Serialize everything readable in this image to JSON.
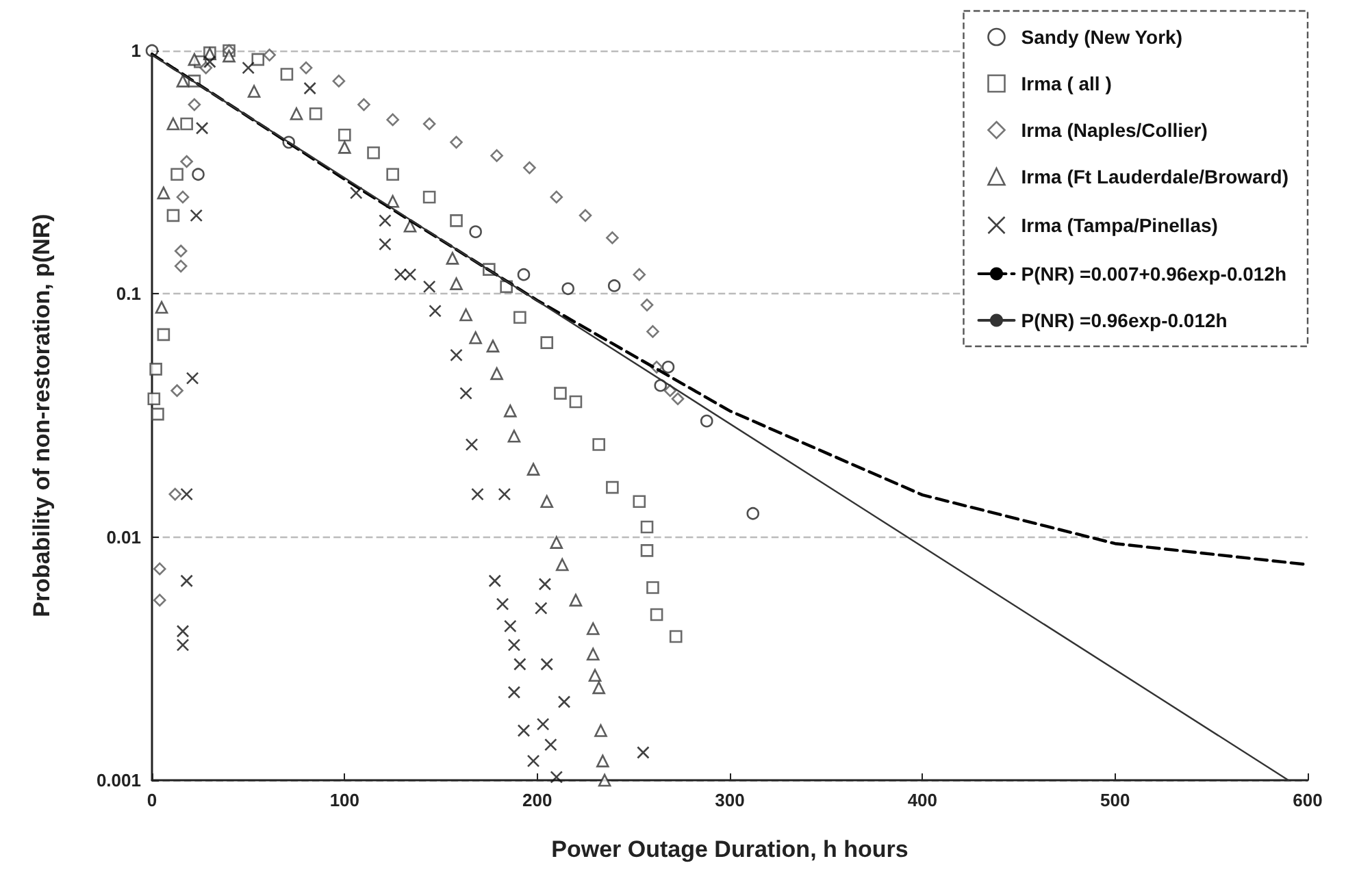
{
  "chart_data": {
    "type": "scatter",
    "xlabel": "Power Outage Duration, h hours",
    "ylabel": "Probability of non-restoration, p(NR)",
    "log": "y",
    "grid": "y",
    "legend": "top right",
    "xlim": [
      0,
      600
    ],
    "xticks": [
      0,
      100,
      200,
      300,
      400,
      500,
      600
    ],
    "ylim": [
      0.001,
      1
    ],
    "yticks": [
      0.001,
      0.01,
      0.1,
      1
    ],
    "series": [
      {
        "name": "Sandy (New York)",
        "color": "#222222",
        "marker": "circle",
        "x": [
          0,
          24,
          71,
          168,
          193,
          216,
          240,
          264,
          268,
          288,
          312
        ],
        "values": [
          1,
          0.31,
          0.42,
          0.18,
          0.12,
          0.105,
          0.108,
          0.042,
          0.05,
          0.03,
          0.0125
        ]
      },
      {
        "name": "Irma ( all )",
        "color": "#444444",
        "marker": "square",
        "x": [
          1,
          3,
          2,
          6,
          11,
          13,
          18,
          22,
          25,
          30,
          40,
          55,
          70,
          85,
          100,
          115,
          125,
          144,
          158,
          175,
          184,
          191,
          205,
          212,
          220,
          232,
          239,
          253,
          257,
          257,
          260,
          262,
          272
        ],
        "values": [
          0.037,
          0.032,
          0.049,
          0.068,
          0.21,
          0.31,
          0.5,
          0.75,
          0.9,
          0.98,
          1,
          0.92,
          0.8,
          0.55,
          0.45,
          0.38,
          0.31,
          0.25,
          0.2,
          0.126,
          0.107,
          0.08,
          0.063,
          0.039,
          0.036,
          0.024,
          0.016,
          0.014,
          0.011,
          0.0088,
          0.0062,
          0.0048,
          0.0039
        ]
      },
      {
        "name": "Irma (Naples/Collier)",
        "color": "#555555",
        "marker": "diamond",
        "x": [
          4,
          4,
          12,
          13,
          15,
          15,
          16,
          18,
          22,
          28,
          40,
          61,
          80,
          97,
          110,
          125,
          144,
          158,
          179,
          196,
          210,
          225,
          239,
          253,
          257,
          260,
          262,
          269,
          273
        ],
        "values": [
          0.0074,
          0.0055,
          0.015,
          0.04,
          0.13,
          0.15,
          0.25,
          0.35,
          0.6,
          0.85,
          1,
          0.96,
          0.85,
          0.75,
          0.6,
          0.52,
          0.5,
          0.42,
          0.37,
          0.33,
          0.25,
          0.21,
          0.17,
          0.12,
          0.09,
          0.07,
          0.05,
          0.04,
          0.037
        ]
      },
      {
        "name": "Irma (Ft Lauderdale/Broward)",
        "color": "#333333",
        "marker": "triangle",
        "x": [
          5,
          6,
          11,
          16,
          22,
          30,
          40,
          53,
          75,
          100,
          125,
          134,
          156,
          158,
          163,
          168,
          177,
          179,
          186,
          188,
          198,
          205,
          210,
          213,
          220,
          229,
          229,
          230,
          232,
          233,
          234,
          235
        ],
        "values": [
          0.088,
          0.26,
          0.5,
          0.75,
          0.92,
          0.97,
          0.95,
          0.68,
          0.55,
          0.4,
          0.24,
          0.19,
          0.14,
          0.11,
          0.082,
          0.066,
          0.061,
          0.047,
          0.033,
          0.026,
          0.019,
          0.014,
          0.0095,
          0.0077,
          0.0055,
          0.0042,
          0.0033,
          0.0027,
          0.0024,
          0.0016,
          0.0012,
          0.001
        ]
      },
      {
        "name": "Irma (Tampa/Pinellas)",
        "color": "#111111",
        "marker": "cross",
        "x": [
          16,
          16,
          18,
          18,
          21,
          23,
          26,
          30,
          50,
          82,
          106,
          121,
          121,
          129,
          134,
          144,
          147,
          158,
          163,
          166,
          169,
          183,
          178,
          182,
          186,
          188,
          191,
          188,
          204,
          202,
          205,
          214,
          193,
          203,
          207,
          198,
          210,
          255
        ],
        "values": [
          0.0041,
          0.0036,
          0.0066,
          0.015,
          0.045,
          0.21,
          0.48,
          0.9,
          0.85,
          0.7,
          0.26,
          0.2,
          0.16,
          0.12,
          0.12,
          0.107,
          0.085,
          0.056,
          0.039,
          0.024,
          0.015,
          0.015,
          0.0066,
          0.0053,
          0.0043,
          0.0036,
          0.003,
          0.0023,
          0.0064,
          0.0051,
          0.003,
          0.0021,
          0.0016,
          0.0017,
          0.0014,
          0.0012,
          0.00103,
          0.0013
        ]
      },
      {
        "name": "P(NR) =0.007+0.96exp-0.012h",
        "type": "line",
        "color": "#000000",
        "marker": "none",
        "line_style": "dashed",
        "x": [
          0,
          100,
          200,
          300,
          400,
          500,
          600
        ],
        "values": [
          0.967,
          0.296,
          0.094,
          0.033,
          0.0149,
          0.0094,
          0.0077
        ]
      },
      {
        "name": "P(NR) =0.96exp-0.012h",
        "type": "line",
        "color": "#333333",
        "marker": "none",
        "line_style": "solid",
        "x": [
          0,
          590
        ],
        "values": [
          0.96,
          0.001
        ]
      }
    ]
  }
}
